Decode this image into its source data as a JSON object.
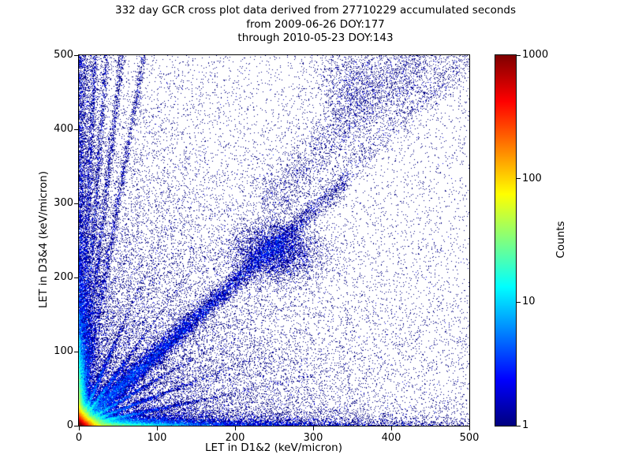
{
  "figure": {
    "background": "#ffffff"
  },
  "chart_data": {
    "type": "heatmap",
    "title": "332 day GCR cross plot data derived from 27710229 accumulated seconds",
    "title_lines": [
      "332 day GCR cross plot data derived from 27710229 accumulated seconds",
      "from 2009-06-26 DOY:177",
      "through 2010-05-23 DOY:143"
    ],
    "xlabel": "LET in D1&2 (keV/micron)",
    "ylabel": "LET in D3&4 (keV/micron)",
    "xlim": [
      0,
      500
    ],
    "ylim": [
      0,
      500
    ],
    "xticks": [
      0,
      100,
      200,
      300,
      400,
      500
    ],
    "yticks": [
      0,
      100,
      200,
      300,
      400,
      500
    ],
    "grid": false,
    "point_style": "1px bins colored by log10(count), jet colormap, white background",
    "colorbar": {
      "label": "Counts",
      "scale": "log",
      "range": [
        1,
        1000
      ],
      "ticks": [
        1,
        10,
        100,
        1000
      ],
      "colormap": "jet",
      "stops": [
        "#00007f",
        "#0000ff",
        "#00ffff",
        "#ffff00",
        "#ff0000",
        "#7f0000"
      ],
      "stop_positions_pct": [
        0,
        12.5,
        37.5,
        62.5,
        87.5,
        100
      ]
    },
    "density_features": [
      {
        "label": "hot spot at origin, counts up to ~1000",
        "kind": "exp2",
        "sx": 6,
        "sy": 6,
        "n": 60000
      },
      {
        "label": "bright streak along x-axis near origin",
        "kind": "exp2",
        "sx": 45,
        "sy": 4,
        "n": 14000
      },
      {
        "label": "bright streak along y-axis near origin",
        "kind": "exp2",
        "sx": 4,
        "sy": 45,
        "n": 14000
      },
      {
        "label": "blue band along bottom edge",
        "kind": "exp2",
        "sx": 170,
        "sy": 6,
        "n": 8000
      },
      {
        "label": "blue column along left edge",
        "kind": "edge",
        "sx": 10,
        "p": 1.6,
        "n": 8000
      },
      {
        "label": "diffuse density falloff from origin",
        "kind": "exp2",
        "sx": 150,
        "sy": 150,
        "n": 22000
      },
      {
        "label": "sparse isolated counts everywhere",
        "kind": "uniform",
        "n": 7000
      },
      {
        "label": "low-angle ray from origin",
        "kind": "ray",
        "slope": 0.22,
        "scale": 55,
        "jitter": 1.3,
        "n": 2500
      },
      {
        "label": "low-angle ray from origin",
        "kind": "ray",
        "slope": 0.4,
        "scale": 50,
        "jitter": 1.3,
        "n": 2400
      },
      {
        "label": "ray from origin",
        "kind": "ray",
        "slope": 0.62,
        "scale": 45,
        "jitter": 1.4,
        "n": 2200
      },
      {
        "label": "ray from origin above diagonal",
        "kind": "ray",
        "slope": 1.45,
        "scale": 45,
        "jitter": 1.4,
        "n": 2200
      },
      {
        "label": "steep ray from origin",
        "kind": "ray",
        "slope": 2.4,
        "scale": 50,
        "jitter": 1.4,
        "n": 2200
      },
      {
        "label": "near-vertical streak converging to origin",
        "kind": "sray",
        "slope": 6,
        "p": 1.25,
        "jx": 2.2,
        "n": 1900
      },
      {
        "label": "near-vertical streak converging to origin",
        "kind": "sray",
        "slope": 9,
        "p": 1.25,
        "jx": 2.2,
        "n": 1900
      },
      {
        "label": "near-vertical streak converging to origin",
        "kind": "sray",
        "slope": 14,
        "p": 1.25,
        "jx": 2.0,
        "n": 1800
      },
      {
        "label": "near-vertical streak converging to origin",
        "kind": "sray",
        "slope": 24,
        "p": 1.25,
        "jx": 1.8,
        "n": 1600
      },
      {
        "label": "main diagonal band y≈x",
        "kind": "band",
        "x0": 0,
        "x1": 345,
        "slope": 0.97,
        "intercept": 0,
        "sigma": 9,
        "taper": "exp",
        "scale": 150,
        "n": 15000
      },
      {
        "label": "sparse diagonal continuation",
        "kind": "band",
        "x0": 345,
        "x1": 500,
        "slope": 1.0,
        "intercept": 0,
        "sigma": 12,
        "taper": "uniform",
        "n": 600
      },
      {
        "label": "dense knot on diagonal near (250,235)",
        "kind": "gauss",
        "x": 252,
        "y": 235,
        "sx": 28,
        "sy": 20,
        "n": 4500
      },
      {
        "label": "diffuse band above diagonal toward upper right",
        "kind": "band",
        "x0": 235,
        "x1": 475,
        "slope": 1.05,
        "intercept": 45,
        "sigma": 26,
        "taper": "uniform",
        "n": 2800
      },
      {
        "label": "cluster near top around (345,455)",
        "kind": "gauss",
        "x": 345,
        "y": 455,
        "sx": 20,
        "sy": 32,
        "n": 900
      },
      {
        "label": "cluster upper right around (415,470)",
        "kind": "gauss",
        "x": 415,
        "y": 470,
        "sx": 45,
        "sy": 28,
        "n": 900
      }
    ]
  }
}
